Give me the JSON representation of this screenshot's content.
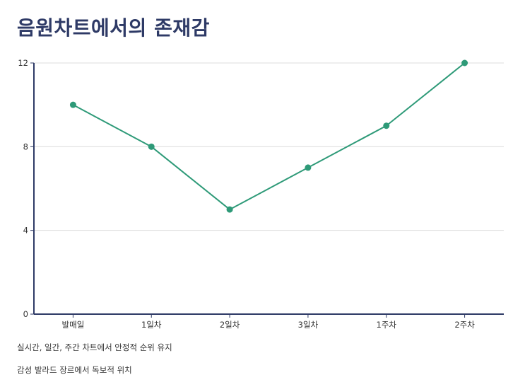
{
  "chart_data": {
    "type": "line",
    "title": "음원차트에서의 존재감",
    "xlabel": "",
    "ylabel": "",
    "categories": [
      "발매일",
      "1일차",
      "2일차",
      "3일차",
      "1주차",
      "2주차"
    ],
    "series": [
      {
        "values": [
          10,
          8,
          5,
          7,
          9,
          12
        ]
      }
    ],
    "ylim": [
      0,
      12
    ],
    "yticks": [
      0,
      4,
      8,
      12
    ],
    "grid": "horizontal",
    "line_color": "#2e9a78",
    "axis_color": "#2e3a66",
    "grid_color": "#dddddd"
  },
  "notes": [
    "실시간, 일간, 주간 차트에서 안정적 순위 유지",
    "감성 발라드 장르에서 독보적 위치"
  ]
}
